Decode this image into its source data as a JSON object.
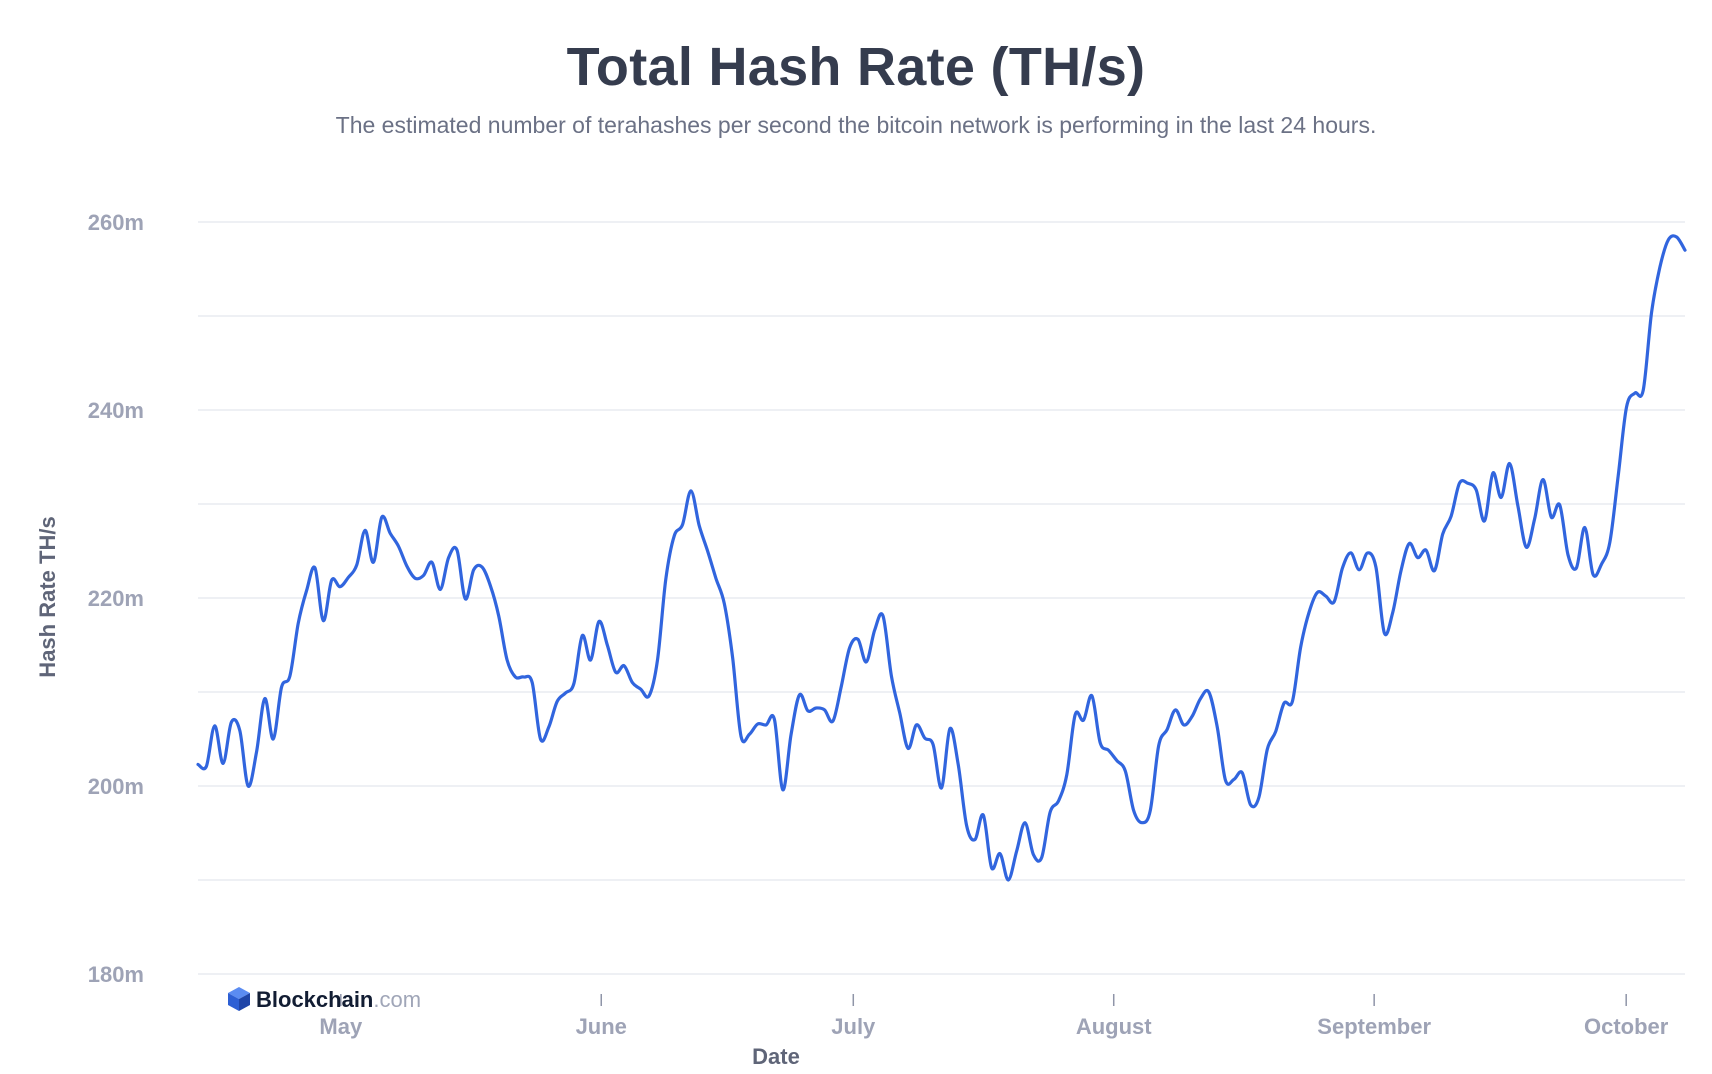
{
  "title": "Total Hash Rate (TH/s)",
  "subtitle": "The estimated number of terahashes per second the bitcoin network is performing in the last 24 hours.",
  "logo": {
    "brand": "Blockchain",
    "suffix": ".com",
    "brand_color": "#121d33",
    "suffix_color": "#a0a6b8",
    "icon": "blockchain-logo-icon"
  },
  "colors": {
    "line": "#3165de",
    "grid": "#e3e6ee",
    "tick_label": "#9ea3b6",
    "axis_title": "#5f6578"
  },
  "chart_data": {
    "type": "line",
    "title": "Total Hash Rate (TH/s)",
    "subtitle": "The estimated number of terahashes per second the bitcoin network is performing in the last 24 hours.",
    "xlabel": "Date",
    "ylabel": "Hash Rate TH/s",
    "ylim": [
      180,
      260
    ],
    "yticks": [
      180,
      200,
      220,
      240,
      260
    ],
    "ytick_suffix": "m",
    "grid": true,
    "x_start": "2021-04-14",
    "x_end": "2021-10-08",
    "xticks": [
      {
        "label": "May",
        "date": "2021-05-01"
      },
      {
        "label": "June",
        "date": "2021-06-01"
      },
      {
        "label": "July",
        "date": "2021-07-01"
      },
      {
        "label": "August",
        "date": "2021-08-01"
      },
      {
        "label": "September",
        "date": "2021-09-01"
      },
      {
        "label": "October",
        "date": "2021-10-01"
      }
    ],
    "series": [
      {
        "values": [
          202.3,
          202.1,
          206.4,
          202.4,
          206.8,
          205.9,
          200.0,
          203.6,
          209.3,
          205.0,
          210.5,
          211.7,
          217.3,
          220.8,
          223.2,
          217.6,
          221.9,
          221.2,
          222.2,
          223.5,
          227.2,
          223.8,
          228.6,
          226.9,
          225.5,
          223.4,
          222.1,
          222.4,
          223.8,
          220.9,
          224.3,
          225.1,
          219.9,
          223.0,
          223.3,
          221.3,
          218.1,
          213.4,
          211.6,
          211.6,
          211.0,
          205.0,
          206.3,
          209.0,
          209.9,
          210.9,
          216.0,
          213.4,
          217.5,
          215.0,
          212.1,
          212.8,
          211.0,
          210.3,
          209.6,
          213.4,
          222.0,
          226.6,
          227.8,
          231.4,
          227.7,
          225.0,
          222.1,
          219.4,
          213.6,
          205.3,
          205.5,
          206.6,
          206.5,
          207.1,
          199.6,
          205.5,
          209.7,
          208.0,
          208.3,
          208.1,
          206.9,
          210.6,
          214.7,
          215.6,
          213.2,
          216.6,
          218.1,
          211.7,
          207.8,
          204.0,
          206.5,
          205.1,
          204.4,
          199.8,
          206.1,
          202.3,
          195.8,
          194.3,
          196.9,
          191.3,
          192.8,
          190.0,
          193.1,
          196.1,
          192.7,
          192.4,
          197.2,
          198.4,
          201.2,
          207.6,
          207.0,
          209.6,
          204.6,
          203.8,
          202.7,
          201.6,
          197.4,
          196.1,
          197.4,
          204.3,
          206.0,
          208.1,
          206.5,
          207.4,
          209.3,
          210.0,
          206.3,
          200.6,
          200.7,
          201.4,
          198.0,
          198.8,
          203.9,
          205.8,
          208.8,
          209.0,
          214.8,
          218.5,
          220.6,
          220.2,
          219.6,
          223.2,
          224.8,
          223.0,
          224.8,
          223.3,
          216.3,
          218.4,
          222.9,
          225.8,
          224.3,
          225.1,
          222.9,
          226.8,
          228.7,
          232.2,
          232.2,
          231.5,
          228.2,
          233.3,
          230.7,
          234.3,
          229.8,
          225.4,
          228.4,
          232.6,
          228.6,
          229.9,
          224.6,
          223.2,
          227.5,
          222.5,
          223.6,
          225.9,
          233.0,
          240.3,
          241.8,
          242.1,
          250.4,
          255.2,
          258.1,
          258.4,
          257.0
        ]
      }
    ]
  }
}
